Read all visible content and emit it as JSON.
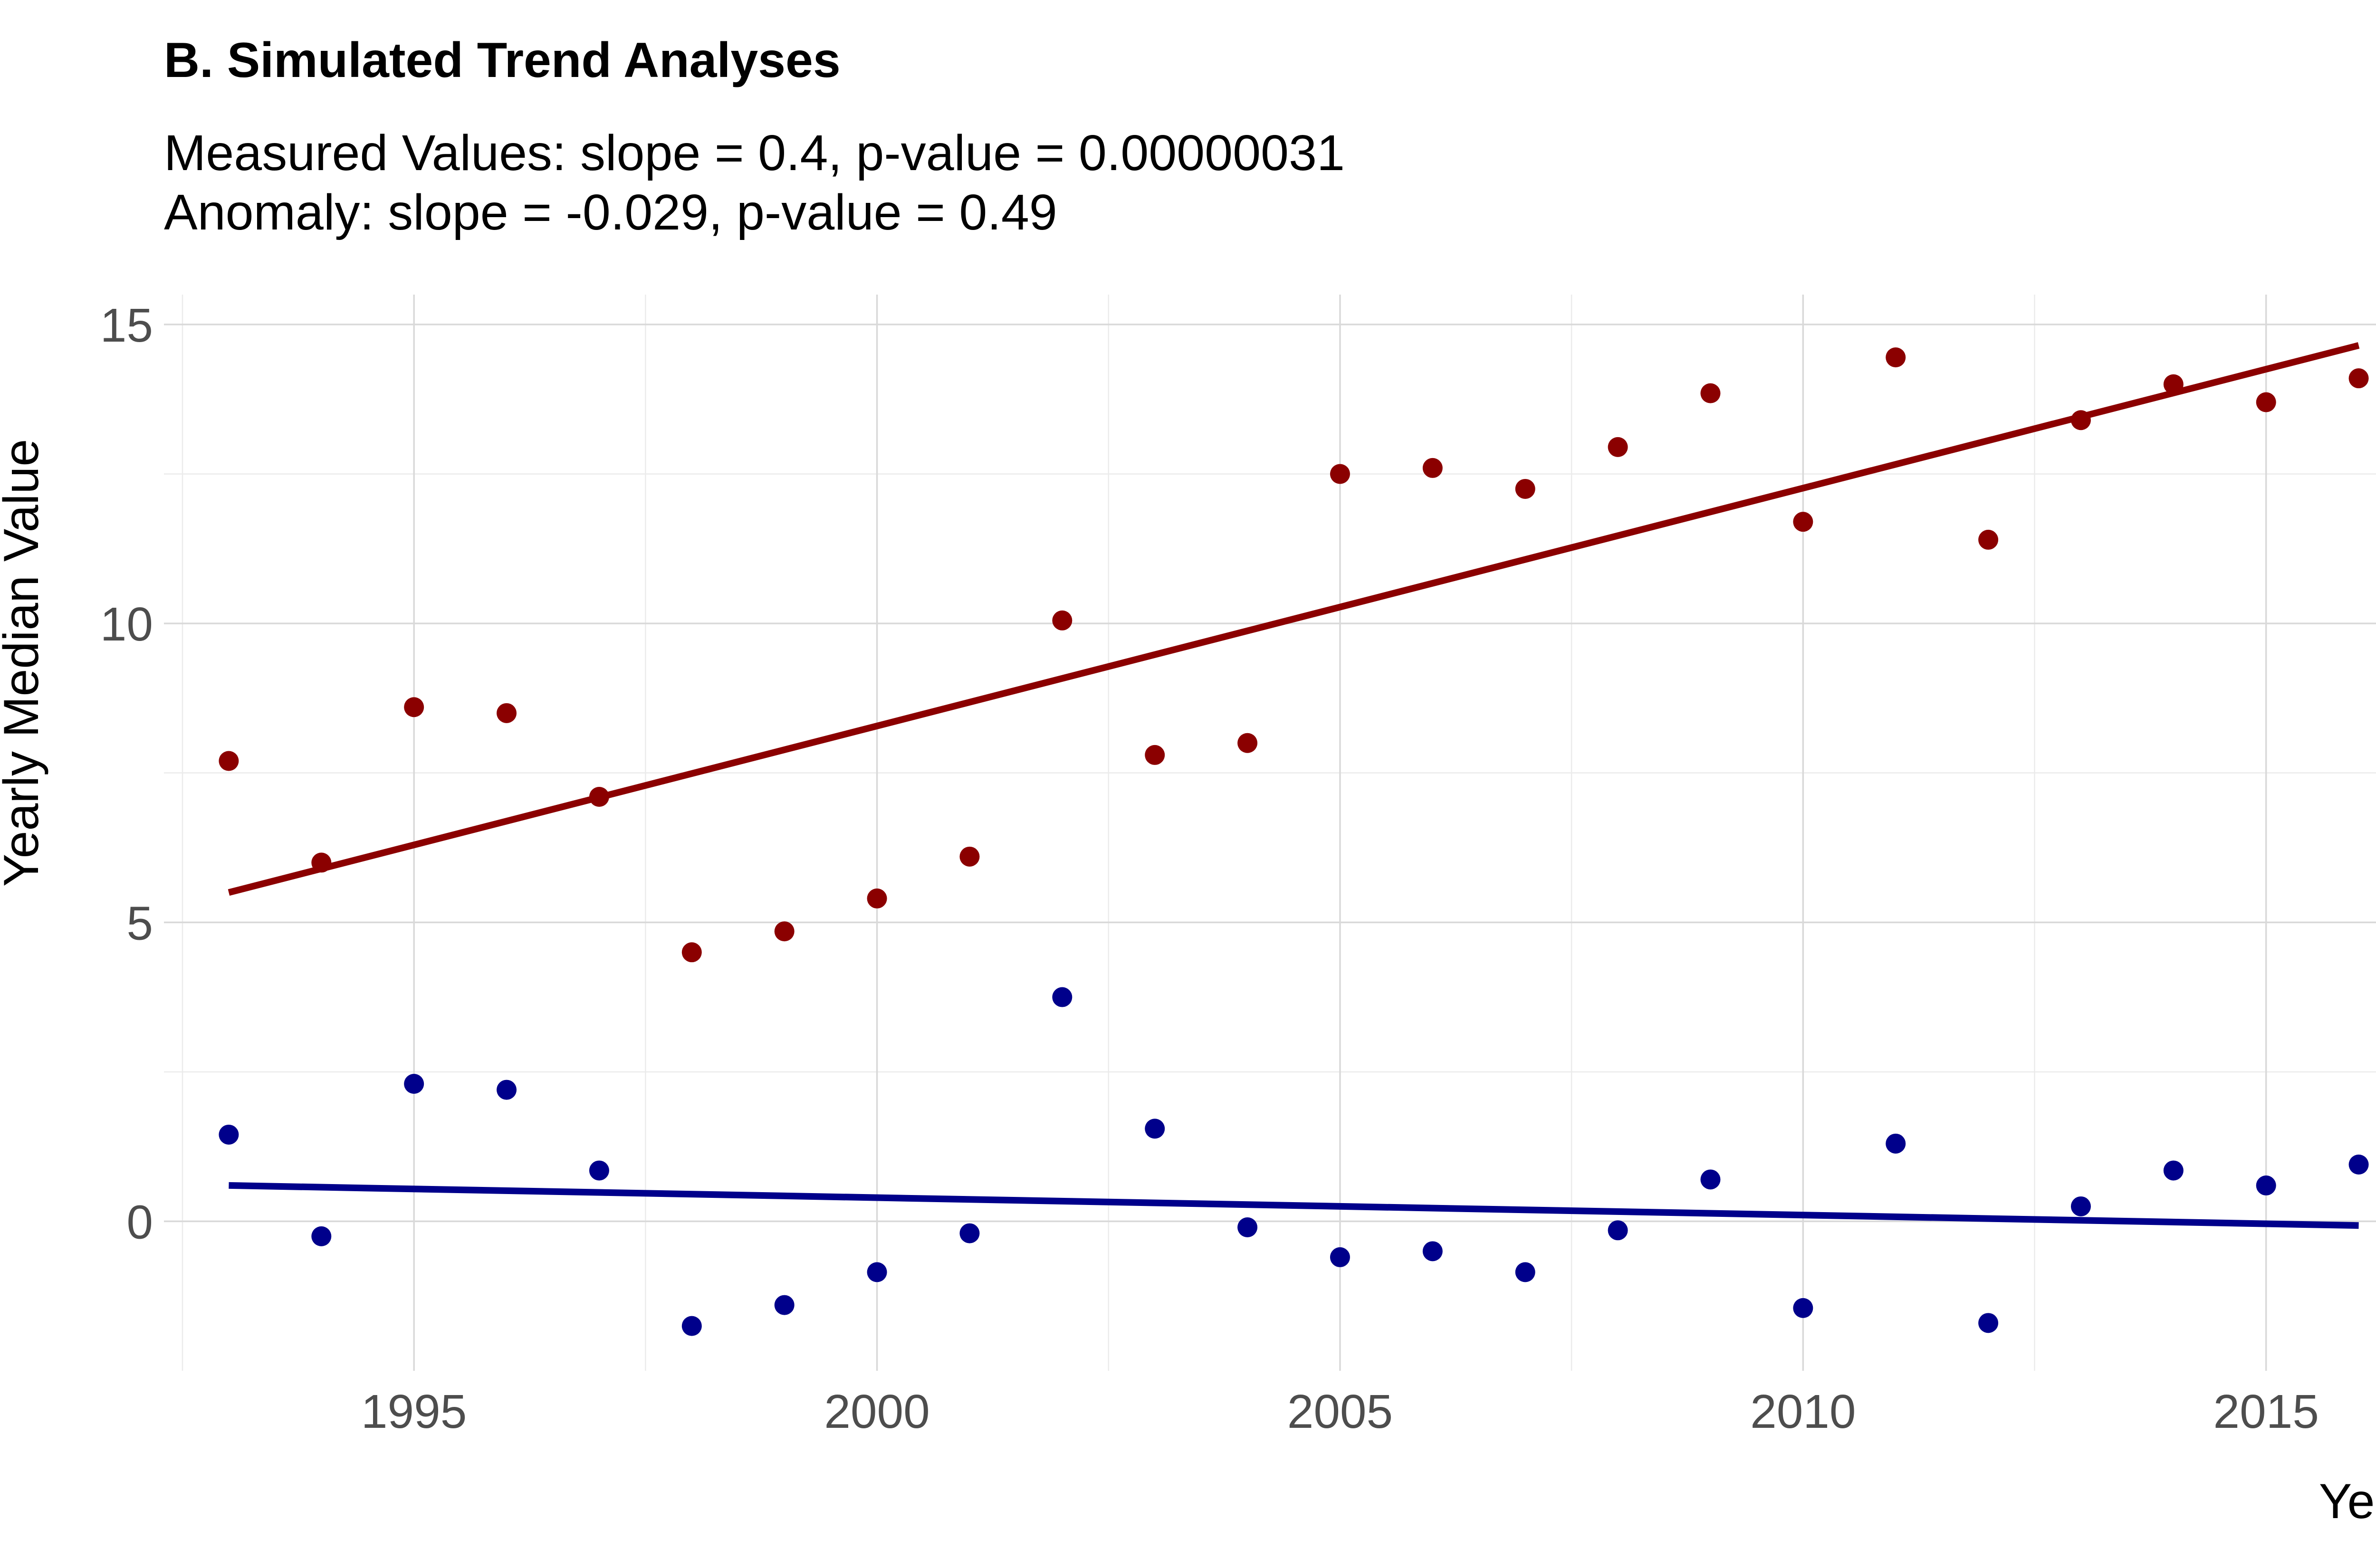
{
  "chart_data": {
    "type": "scatter",
    "title": "B. Simulated Trend Analyses",
    "subtitle_lines": [
      "Measured Values: slope = 0.4, p-value = 0.00000031",
      "Anomaly: slope = -0.029, p-value = 0.49"
    ],
    "xlabel": "Year",
    "ylabel": "Yearly Median Value",
    "xlim": [
      1992.3,
      2016.7
    ],
    "ylim": [
      -2.5,
      15.5
    ],
    "x_ticks": [
      1995,
      2000,
      2005,
      2010,
      2015
    ],
    "x_tick_labels": [
      "1995",
      "2000",
      "2005",
      "2010",
      "2015"
    ],
    "y_ticks": [
      0,
      5,
      10,
      15
    ],
    "y_tick_labels": [
      "0",
      "5",
      "10",
      "15"
    ],
    "grid": true,
    "legend": "none",
    "x": [
      1993,
      1994,
      1995,
      1996,
      1997,
      1998,
      1999,
      2000,
      2001,
      2002,
      2003,
      2004,
      2005,
      2006,
      2007,
      2008,
      2009,
      2010,
      2011,
      2012,
      2013,
      2014,
      2015,
      2016
    ],
    "series": [
      {
        "color": "#8b0000",
        "values": [
          7.7,
          6.0,
          8.6,
          8.5,
          7.1,
          4.5,
          4.85,
          5.4,
          6.1,
          10.05,
          7.8,
          8.0,
          12.5,
          12.6,
          12.25,
          12.95,
          13.85,
          11.7,
          14.45,
          11.4,
          13.4,
          14.0,
          13.7,
          14.1
        ],
        "trend": {
          "x": [
            1993,
            2016
          ],
          "y": [
            5.5,
            14.65
          ]
        }
      },
      {
        "color": "#00008b",
        "values": [
          1.45,
          -0.25,
          2.3,
          2.2,
          0.85,
          -1.75,
          -1.4,
          -0.85,
          -0.2,
          3.75,
          1.55,
          -0.1,
          -0.6,
          -0.5,
          -0.85,
          -0.15,
          0.7,
          -1.45,
          1.3,
          -1.7,
          0.25,
          0.85,
          0.6,
          0.95
        ],
        "trend": {
          "x": [
            1993,
            2016
          ],
          "y": [
            0.6,
            -0.07
          ]
        }
      }
    ]
  }
}
